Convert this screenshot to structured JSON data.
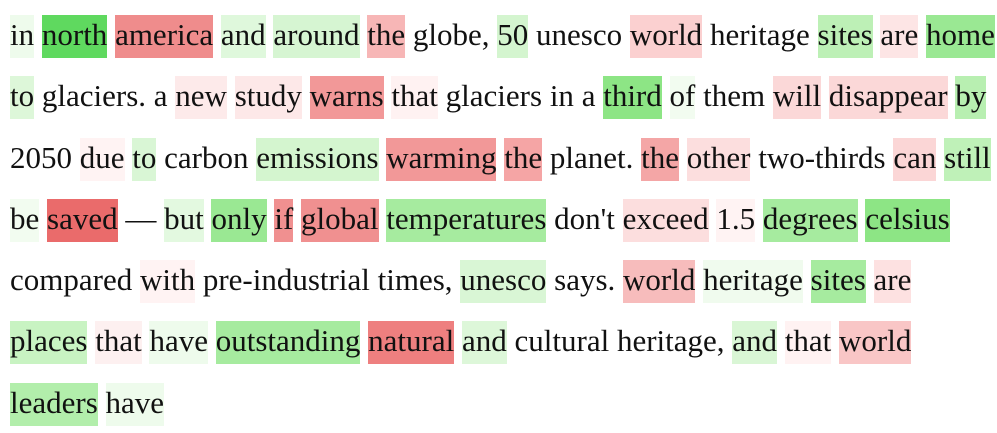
{
  "tokens": [
    {
      "t": "in",
      "c": "#eefbec"
    },
    {
      "t": "north",
      "c": "#5fd95f"
    },
    {
      "t": "america",
      "c": "#ef8c8c"
    },
    {
      "t": "and",
      "c": "#dff8dc"
    },
    {
      "t": "around",
      "c": "#d6f5d2"
    },
    {
      "t": "the",
      "c": "#f7b6b6"
    },
    {
      "t": "globe,",
      "c": ""
    },
    {
      "t": "50",
      "c": "#d4f5cf"
    },
    {
      "t": "unesco",
      "c": ""
    },
    {
      "t": "world",
      "c": "#fbd0d0"
    },
    {
      "t": "heritage",
      "c": ""
    },
    {
      "t": "sites",
      "c": "#bdf0b6"
    },
    {
      "t": "are",
      "c": "#fde5e5"
    },
    {
      "t": "home",
      "c": "#9ae893"
    },
    {
      "t": "to",
      "c": "#ddf7d9"
    },
    {
      "t": "glaciers.",
      "c": ""
    },
    {
      "t": "a",
      "c": ""
    },
    {
      "t": "new",
      "c": "#fdeaea"
    },
    {
      "t": "study",
      "c": "#fde8e8"
    },
    {
      "t": "warns",
      "c": "#f29898"
    },
    {
      "t": "that",
      "c": "#fff2f2"
    },
    {
      "t": "glaciers",
      "c": ""
    },
    {
      "t": "in",
      "c": ""
    },
    {
      "t": "a",
      "c": ""
    },
    {
      "t": "third",
      "c": "#8de585"
    },
    {
      "t": "of",
      "c": "#f2fcf0"
    },
    {
      "t": "them",
      "c": ""
    },
    {
      "t": "will",
      "c": "#fbd8d8"
    },
    {
      "t": "disappear",
      "c": "#fbd8d8"
    },
    {
      "t": "by",
      "c": "#b8efb1"
    },
    {
      "t": "2050",
      "c": ""
    },
    {
      "t": "due",
      "c": "#fff3f3"
    },
    {
      "t": "to",
      "c": "#d9f6d5"
    },
    {
      "t": "carbon",
      "c": ""
    },
    {
      "t": "emissions",
      "c": "#d4f5cf"
    },
    {
      "t": "warming",
      "c": "#f29898"
    },
    {
      "t": "the",
      "c": "#f5a5a5"
    },
    {
      "t": "planet.",
      "c": ""
    },
    {
      "t": "the",
      "c": "#f4a6a6"
    },
    {
      "t": "other",
      "c": "#fcdede"
    },
    {
      "t": "two-thirds",
      "c": ""
    },
    {
      "t": "can",
      "c": "#fbd6d6"
    },
    {
      "t": "still",
      "c": "#bff1b8"
    },
    {
      "t": "be",
      "c": "#f2fcf0"
    },
    {
      "t": "saved",
      "c": "#ea6b6b"
    },
    {
      "t": "—",
      "c": ""
    },
    {
      "t": "but",
      "c": "#e3f9e0"
    },
    {
      "t": "only",
      "c": "#9ae893"
    },
    {
      "t": "if",
      "c": "#f09090"
    },
    {
      "t": "global",
      "c": "#f09090"
    },
    {
      "t": "temperatures",
      "c": "#a6eb9f"
    },
    {
      "t": "don't",
      "c": ""
    },
    {
      "t": "exceed",
      "c": "#fcdede"
    },
    {
      "t": "1.5",
      "c": "#fff3f3"
    },
    {
      "t": "degrees",
      "c": "#a6eb9f"
    },
    {
      "t": "celsius",
      "c": "#8de585"
    },
    {
      "t": "compared",
      "c": ""
    },
    {
      "t": "with",
      "c": "#fff3f3"
    },
    {
      "t": "pre-industrial",
      "c": ""
    },
    {
      "t": "times,",
      "c": ""
    },
    {
      "t": "unesco",
      "c": "#d9f6d5"
    },
    {
      "t": "says.",
      "c": ""
    },
    {
      "t": "world",
      "c": "#f7bcbc"
    },
    {
      "t": "heritage",
      "c": "#f0fbee"
    },
    {
      "t": "sites",
      "c": "#a6eb9f"
    },
    {
      "t": "are",
      "c": "#fde1e1"
    },
    {
      "t": "places",
      "c": "#c8f3c2"
    },
    {
      "t": "that",
      "c": "#fdf0f0"
    },
    {
      "t": "have",
      "c": "#eefbec"
    },
    {
      "t": "outstanding",
      "c": "#a6eb9f"
    },
    {
      "t": "natural",
      "c": "#ee7f7f"
    },
    {
      "t": "and",
      "c": "#ddf7d9"
    },
    {
      "t": "cultural",
      "c": ""
    },
    {
      "t": "heritage,",
      "c": ""
    },
    {
      "t": "and",
      "c": "#d9f6d5"
    },
    {
      "t": "that",
      "c": "#fff2f2"
    },
    {
      "t": "world",
      "c": "#f9c6c6"
    },
    {
      "t": "leaders",
      "c": "#b2eeab"
    },
    {
      "t": "have",
      "c": "#eefbec"
    }
  ]
}
